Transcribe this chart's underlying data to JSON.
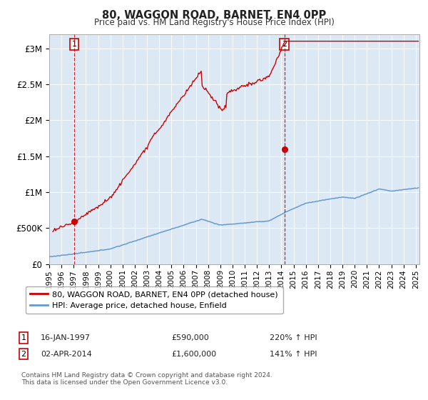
{
  "title": "80, WAGGON ROAD, BARNET, EN4 0PP",
  "subtitle": "Price paid vs. HM Land Registry's House Price Index (HPI)",
  "background_color": "white",
  "plot_bg_color": "#dce9f5",
  "sale1_year": 1997.04,
  "sale1_price": 590000,
  "sale2_year": 2014.25,
  "sale2_price": 1600000,
  "hpi_line_color": "#6699cc",
  "price_line_color": "#cc0000",
  "marker_color": "#cc0000",
  "legend_label1": "80, WAGGON ROAD, BARNET, EN4 0PP (detached house)",
  "legend_label2": "HPI: Average price, detached house, Enfield",
  "footnote": "Contains HM Land Registry data © Crown copyright and database right 2024.\nThis data is licensed under the Open Government Licence v3.0.",
  "yticks": [
    0,
    500000,
    1000000,
    1500000,
    2000000,
    2500000,
    3000000
  ],
  "ytick_labels": [
    "£0",
    "£500K",
    "£1M",
    "£1.5M",
    "£2M",
    "£2.5M",
    "£3M"
  ],
  "ylim": [
    0,
    3200000
  ],
  "xlim_start": 1995.0,
  "xlim_end": 2025.3,
  "sale1_info": [
    "16-JAN-1997",
    "£590,000",
    "220% ↑ HPI"
  ],
  "sale2_info": [
    "02-APR-2014",
    "£1,600,000",
    "141% ↑ HPI"
  ]
}
